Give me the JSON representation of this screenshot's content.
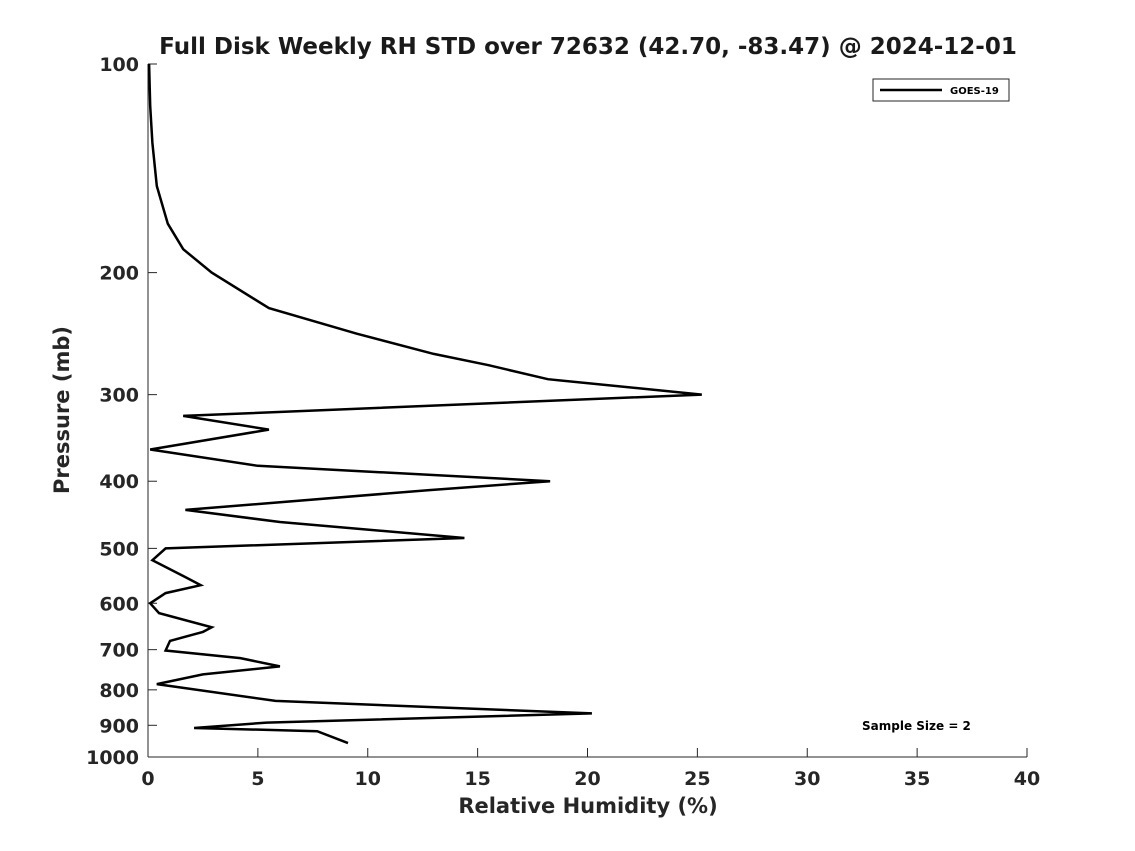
{
  "chart_data": {
    "type": "line",
    "title": "Full Disk Weekly RH STD over 72632 (42.70, -83.47) @ 2024-12-01",
    "xlabel": "Relative Humidity (%)",
    "ylabel": "Pressure (mb)",
    "xlim": [
      0,
      40
    ],
    "ylim": [
      1000,
      100
    ],
    "yscale": "log",
    "y_reversed": true,
    "xticks": [
      0,
      5,
      10,
      15,
      20,
      25,
      30,
      35,
      40
    ],
    "yticks": [
      100,
      200,
      300,
      400,
      500,
      600,
      700,
      800,
      900,
      1000
    ],
    "grid": false,
    "legend_position": "top-right",
    "annotation": "Sample Size = 2",
    "series": [
      {
        "name": "GOES-19",
        "color": "#000000",
        "points": [
          [
            0.05,
            100
          ],
          [
            0.1,
            115
          ],
          [
            0.2,
            130
          ],
          [
            0.4,
            150
          ],
          [
            0.9,
            170
          ],
          [
            1.6,
            185
          ],
          [
            2.9,
            200
          ],
          [
            5.5,
            225
          ],
          [
            9.5,
            245
          ],
          [
            13,
            262
          ],
          [
            15.5,
            272
          ],
          [
            18.2,
            285
          ],
          [
            25.2,
            300
          ],
          [
            1.6,
            322
          ],
          [
            5.5,
            337
          ],
          [
            0.1,
            360
          ],
          [
            5,
            380
          ],
          [
            18.3,
            400
          ],
          [
            12.8,
            412
          ],
          [
            1.7,
            440
          ],
          [
            6,
            458
          ],
          [
            14.4,
            483
          ],
          [
            0.8,
            500
          ],
          [
            0.2,
            520
          ],
          [
            1.7,
            550
          ],
          [
            2.4,
            565
          ],
          [
            0.8,
            580
          ],
          [
            0.1,
            600
          ],
          [
            0.5,
            620
          ],
          [
            2.9,
            650
          ],
          [
            2.5,
            660
          ],
          [
            1,
            680
          ],
          [
            0.8,
            702
          ],
          [
            4.2,
            720
          ],
          [
            6,
            740
          ],
          [
            2.5,
            760
          ],
          [
            0.4,
            785
          ],
          [
            5.8,
            830
          ],
          [
            20.2,
            865
          ],
          [
            5.4,
            892
          ],
          [
            2.1,
            908
          ],
          [
            7.7,
            918
          ],
          [
            9.1,
            955
          ]
        ]
      }
    ]
  }
}
